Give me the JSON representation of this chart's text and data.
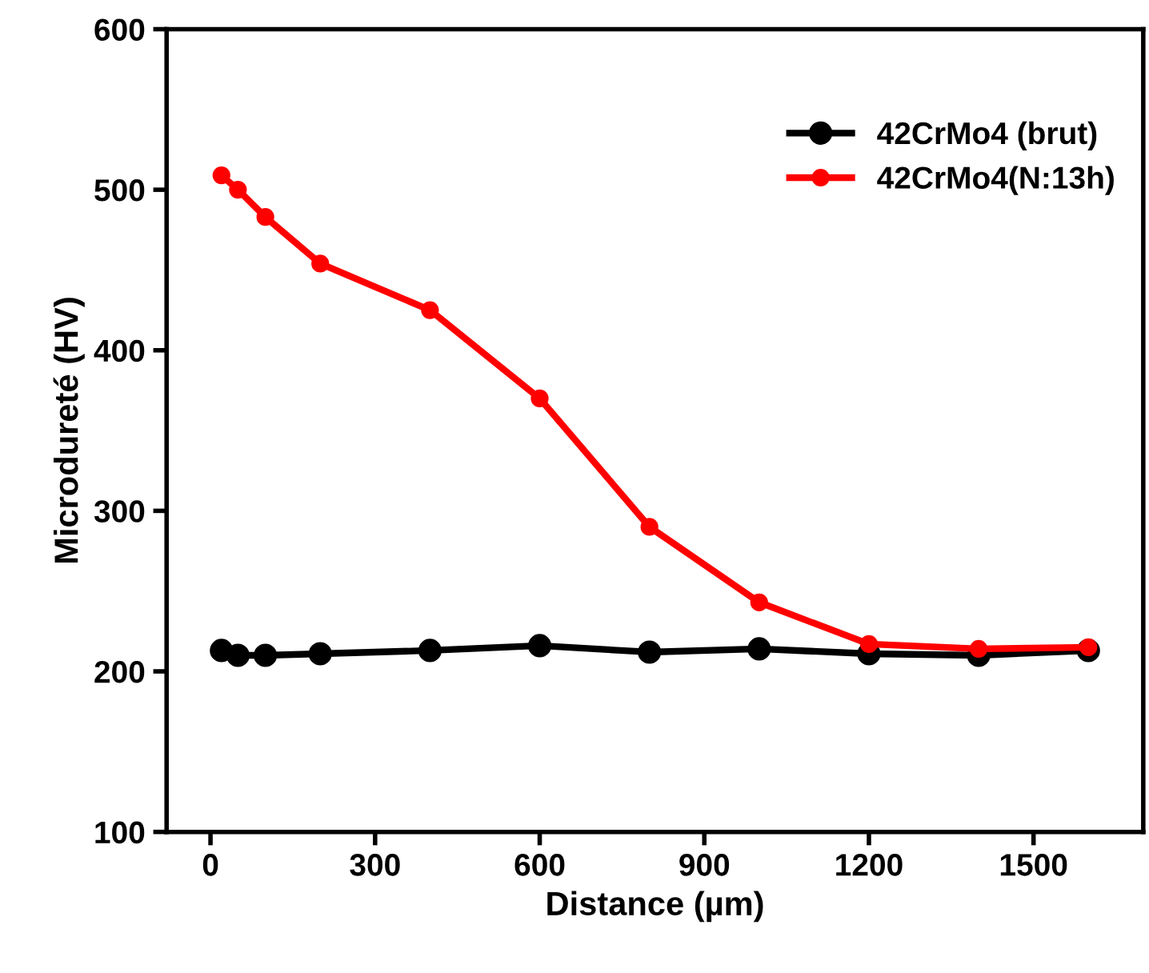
{
  "chart_data": {
    "type": "line",
    "xlabel": "Distance (µm)",
    "ylabel": "Microdureté (HV)",
    "x": [
      20,
      50,
      100,
      200,
      400,
      600,
      800,
      1000,
      1200,
      1400,
      1600
    ],
    "series": [
      {
        "name": "42CrMo4 (brut)",
        "color": "#000000",
        "values": [
          213,
          210,
          210,
          211,
          213,
          216,
          212,
          214,
          211,
          210,
          213
        ]
      },
      {
        "name": "42CrMo4(N:13h)",
        "color": "#ff0000",
        "values": [
          509,
          500,
          483,
          454,
          425,
          370,
          290,
          243,
          217,
          214,
          215
        ]
      }
    ],
    "xlim": [
      -80,
      1700
    ],
    "ylim": [
      100,
      600
    ],
    "xticks": [
      0,
      300,
      600,
      900,
      1200,
      1500
    ],
    "yticks": [
      100,
      200,
      300,
      400,
      500,
      600
    ],
    "marker": "circle",
    "line_style": "solid",
    "legend": "top right",
    "grid": false
  }
}
